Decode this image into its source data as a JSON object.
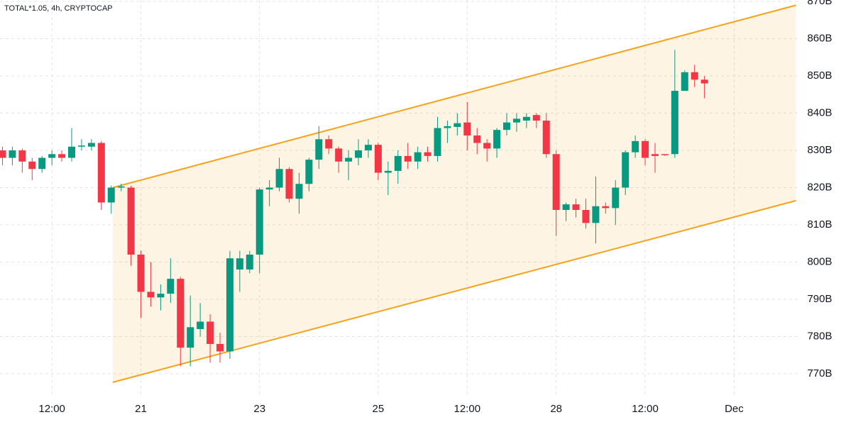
{
  "chart_data": {
    "type": "candlestick",
    "title": "TOTAL*1.05, 4h, CRYPTOCAP",
    "up_color": "#089981",
    "down_color": "#f23645",
    "grid": true,
    "x": [
      -8,
      -4,
      0,
      4,
      8,
      12,
      16,
      20,
      24,
      28,
      32,
      36,
      40,
      44,
      48,
      52,
      56,
      60,
      64,
      68,
      72,
      76,
      80,
      84,
      88,
      92,
      96,
      100,
      104,
      108,
      112,
      116,
      120,
      124,
      128,
      132,
      136,
      140,
      144,
      148,
      152,
      156,
      160,
      164,
      168,
      172,
      176,
      180,
      184,
      188,
      192,
      196,
      200,
      204,
      208,
      212,
      216,
      220,
      224,
      228,
      232,
      236,
      240,
      244,
      248,
      252,
      256,
      260,
      264,
      268,
      272,
      276
    ],
    "open": [
      830,
      828,
      830,
      827,
      825,
      828,
      829,
      828,
      831,
      831,
      832,
      816,
      820,
      820,
      802,
      792,
      790.5,
      791.5,
      795.5,
      777,
      782,
      784,
      778,
      776,
      798,
      798,
      802,
      819.5,
      820,
      825,
      817,
      821,
      827.5,
      833,
      830.5,
      827,
      828,
      830,
      831.5,
      824,
      824.5,
      828.5,
      827,
      829.5,
      828.5,
      836,
      836.3,
      837.5,
      834,
      832,
      830.5,
      835.5,
      837.5,
      838,
      839.5,
      838,
      829,
      814,
      815.5,
      814,
      810.5,
      815,
      814.5,
      820,
      829.5,
      832.5,
      829,
      829,
      829,
      846,
      851,
      849
    ],
    "close": [
      828,
      830,
      827,
      825,
      828,
      829,
      828,
      831,
      831.3,
      832,
      816,
      820,
      820.3,
      802,
      792,
      790.5,
      791.5,
      795.5,
      777,
      782.5,
      784,
      778,
      776,
      801,
      801,
      802,
      819.5,
      820,
      825,
      817,
      821,
      827.5,
      833,
      830.5,
      827,
      828,
      830,
      831.5,
      824,
      824.5,
      828.5,
      827,
      829.5,
      828.5,
      836,
      836.5,
      837.3,
      834,
      832,
      830.5,
      835.5,
      837.5,
      838.5,
      839,
      838,
      829,
      814,
      815.5,
      814,
      810.5,
      815,
      814.5,
      820,
      829.5,
      832.5,
      828,
      828.5,
      828.8,
      846,
      851,
      849,
      848
    ],
    "high": [
      831,
      831,
      830.5,
      828,
      828.5,
      830,
      830,
      836,
      833,
      833,
      832.5,
      820.5,
      821,
      820.5,
      803,
      800,
      794,
      801,
      796,
      791,
      789,
      786,
      781,
      803,
      803,
      803,
      820,
      822,
      828,
      825.5,
      824,
      828,
      836.5,
      834,
      831,
      830,
      833,
      833,
      832,
      827,
      830,
      832,
      831,
      831,
      839,
      838,
      840,
      843,
      836,
      833,
      836,
      840,
      840,
      840,
      840,
      840,
      830,
      816,
      817,
      817,
      823,
      816,
      822,
      830,
      834,
      833,
      832,
      829,
      857,
      851.5,
      853,
      850
    ],
    "low": [
      826,
      826,
      824,
      822,
      824,
      826,
      827,
      827,
      830,
      830,
      814,
      813,
      819,
      799,
      785,
      788,
      787,
      789,
      772,
      772,
      780,
      773,
      773,
      774,
      792,
      797,
      797,
      815,
      819,
      816,
      813,
      819,
      825,
      829,
      824,
      822,
      826,
      828,
      822,
      818,
      821,
      825,
      825,
      827,
      827,
      832,
      834,
      830,
      829,
      827,
      828,
      834,
      835,
      836,
      836,
      828,
      807,
      811,
      812,
      809,
      805,
      813,
      810,
      818,
      828,
      826,
      824,
      828.5,
      828,
      846,
      847,
      844
    ],
    "channel": {
      "color": "#f7a21b",
      "upper": [
        [
          36.6,
          820
        ],
        [
          313,
          869
        ]
      ],
      "lower": [
        [
          36.6,
          767.7
        ],
        [
          313,
          816.5
        ]
      ]
    },
    "xlim": [
      -9,
      314
    ],
    "ylim": [
      763.7,
      870.4
    ],
    "xticks": [
      {
        "value": 12,
        "label": "12:00"
      },
      {
        "value": 48,
        "label": "21"
      },
      {
        "value": 96,
        "label": "23"
      },
      {
        "value": 144,
        "label": "25"
      },
      {
        "value": 180,
        "label": "12:00"
      },
      {
        "value": 216,
        "label": "28"
      },
      {
        "value": 252,
        "label": "12:00"
      },
      {
        "value": 288,
        "label": "Dec"
      }
    ],
    "yticks": [
      {
        "value": 870,
        "label": "870B"
      },
      {
        "value": 860,
        "label": "860B"
      },
      {
        "value": 850,
        "label": "850B"
      },
      {
        "value": 840,
        "label": "840B"
      },
      {
        "value": 830,
        "label": "830B"
      },
      {
        "value": 820,
        "label": "820B"
      },
      {
        "value": 810,
        "label": "810B"
      },
      {
        "value": 800,
        "label": "800B"
      },
      {
        "value": 790,
        "label": "790B"
      },
      {
        "value": 780,
        "label": "780B"
      },
      {
        "value": 770,
        "label": "770B"
      }
    ]
  }
}
